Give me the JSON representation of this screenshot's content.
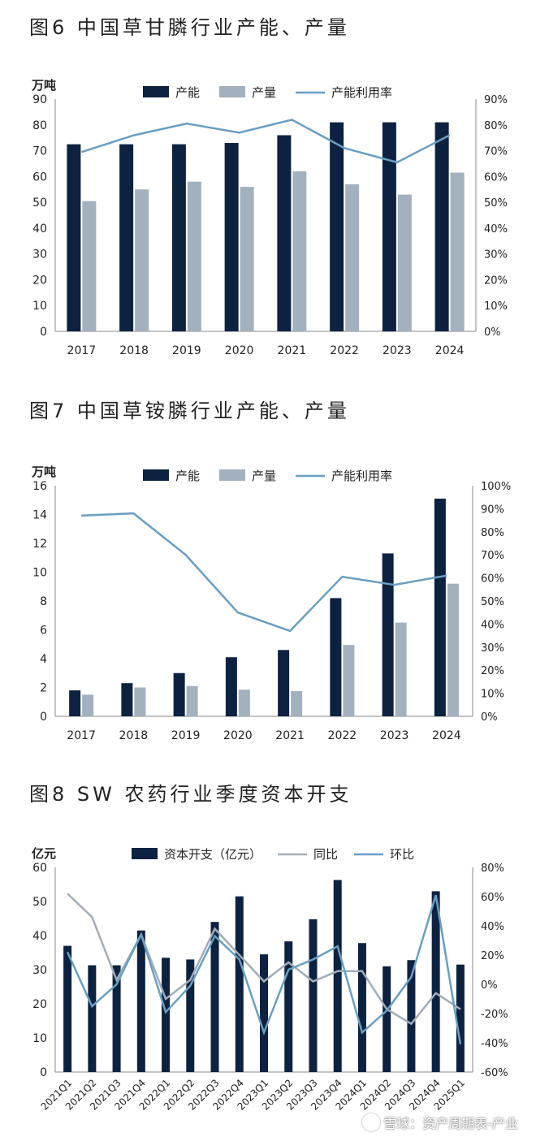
{
  "chart_data": [
    {
      "type": "bar",
      "title": "图6 中国草甘膦行业产能、产量",
      "left_unit": "万吨",
      "categories": [
        "2017",
        "2018",
        "2019",
        "2020",
        "2021",
        "2022",
        "2023",
        "2024"
      ],
      "series": [
        {
          "name": "产能",
          "kind": "bar",
          "axis": "left",
          "color": "#0d2240",
          "values": [
            72.5,
            72.5,
            72.5,
            73,
            76,
            81,
            81,
            81
          ]
        },
        {
          "name": "产量",
          "kind": "bar",
          "axis": "left",
          "color": "#a3b1bf",
          "values": [
            50.5,
            55,
            58,
            56,
            62,
            57,
            53,
            61.5
          ]
        },
        {
          "name": "产能利用率",
          "kind": "line",
          "axis": "right",
          "color": "#6a9ec2",
          "values": [
            69.5,
            76,
            80.5,
            77,
            82,
            71,
            65.5,
            76
          ]
        }
      ],
      "ylim_left": [
        0,
        90
      ],
      "yticks_left": [
        0,
        10,
        20,
        30,
        40,
        50,
        60,
        70,
        80,
        90
      ],
      "ylim_right": [
        0,
        90
      ],
      "yticks_right": [
        "0%",
        "10%",
        "20%",
        "30%",
        "40%",
        "50%",
        "60%",
        "70%",
        "80%",
        "90%"
      ],
      "legend": "top"
    },
    {
      "type": "bar",
      "title": "图7 中国草铵膦行业产能、产量",
      "left_unit": "万吨",
      "categories": [
        "2017",
        "2018",
        "2019",
        "2020",
        "2021",
        "2022",
        "2023",
        "2024"
      ],
      "series": [
        {
          "name": "产能",
          "kind": "bar",
          "axis": "left",
          "color": "#0d2240",
          "values": [
            1.8,
            2.3,
            3.0,
            4.1,
            4.6,
            8.2,
            11.3,
            15.1
          ]
        },
        {
          "name": "产量",
          "kind": "bar",
          "axis": "left",
          "color": "#a3b1bf",
          "values": [
            1.5,
            2.0,
            2.1,
            1.85,
            1.75,
            4.95,
            6.5,
            9.2
          ]
        },
        {
          "name": "产能利用率",
          "kind": "line",
          "axis": "right",
          "color": "#6a9ec2",
          "values": [
            87,
            88,
            70,
            45,
            37,
            60.5,
            57,
            61
          ]
        }
      ],
      "ylim_left": [
        0,
        16
      ],
      "yticks_left": [
        0,
        2,
        4,
        6,
        8,
        10,
        12,
        14,
        16
      ],
      "ylim_right": [
        0,
        100
      ],
      "yticks_right": [
        "0%",
        "10%",
        "20%",
        "30%",
        "40%",
        "50%",
        "60%",
        "70%",
        "80%",
        "90%",
        "100%"
      ],
      "legend": "top"
    },
    {
      "type": "bar",
      "title": "图8 SW 农药行业季度资本开支",
      "left_unit": "亿元",
      "categories": [
        "2021Q1",
        "2021Q2",
        "2021Q3",
        "2021Q4",
        "2022Q1",
        "2022Q2",
        "2022Q3",
        "2022Q4",
        "2023Q1",
        "2023Q2",
        "2023Q3",
        "2023Q4",
        "2024Q1",
        "2024Q2",
        "2024Q3",
        "2024Q4",
        "2025Q1"
      ],
      "series": [
        {
          "name": "资本开支（亿元）",
          "kind": "bar",
          "axis": "left",
          "color": "#0d2240",
          "values": [
            37,
            31.3,
            31.3,
            41.5,
            33.5,
            33,
            44,
            51.5,
            34.5,
            38.3,
            44.8,
            56.3,
            37.8,
            31,
            32.8,
            53,
            31.5
          ]
        },
        {
          "name": "同比",
          "kind": "line",
          "axis": "right",
          "color": "#a3adb8",
          "values": [
            62,
            46,
            3,
            34,
            -10,
            3,
            38,
            20,
            2,
            15,
            2,
            9,
            9,
            -17,
            -27,
            -6,
            -17
          ]
        },
        {
          "name": "环比",
          "kind": "line",
          "axis": "right",
          "color": "#6a9ec2",
          "values": [
            22,
            -15,
            0,
            34,
            -19,
            -1,
            33,
            17,
            -33,
            10,
            17,
            26,
            -33,
            -18,
            5,
            61,
            -41
          ]
        }
      ],
      "ylim_left": [
        0,
        60
      ],
      "yticks_left": [
        0,
        10,
        20,
        30,
        40,
        50,
        60
      ],
      "ylim_right": [
        -60,
        80
      ],
      "yticks_right": [
        "-60%",
        "-40%",
        "-20%",
        "0%",
        "20%",
        "40%",
        "60%",
        "80%"
      ],
      "legend": "top"
    }
  ],
  "watermark": "雪球：资产周期表-产业"
}
